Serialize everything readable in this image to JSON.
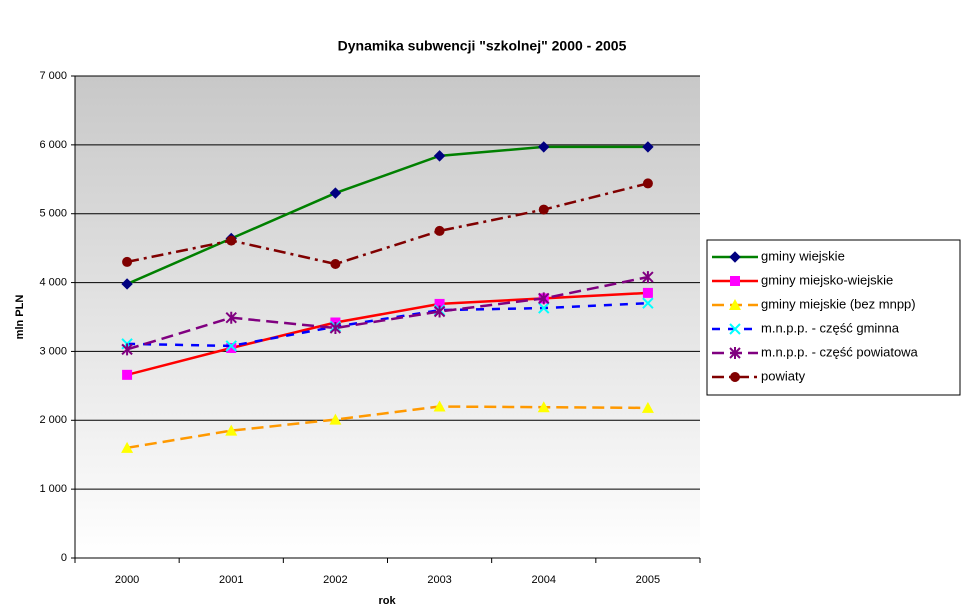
{
  "chart_data": {
    "type": "line",
    "title": "Dynamika subwencji \"szkolnej\" 2000 - 2005",
    "x_label": "rok",
    "y_label": "mln PLN",
    "categories": [
      "2000",
      "2001",
      "2002",
      "2003",
      "2004",
      "2005"
    ],
    "ylim": [
      0,
      7000
    ],
    "yticks": [
      0,
      {
        "value": 1000,
        "label": "1 000"
      },
      {
        "value": 2000,
        "label": "2 000"
      },
      {
        "value": 3000,
        "label": "3 000"
      },
      {
        "value": 4000,
        "label": "4 000"
      },
      {
        "value": 5000,
        "label": "5 000"
      },
      {
        "value": 6000,
        "label": "6 000"
      },
      {
        "value": 7000,
        "label": "7 000"
      }
    ],
    "grid": true,
    "legend": "right",
    "series": [
      {
        "name": "gminy wiejskie",
        "color": "#008000",
        "marker": "diamond",
        "marker_color": "#000080",
        "dash": "solid",
        "values": [
          3980,
          4640,
          5300,
          5840,
          5970,
          5970
        ]
      },
      {
        "name": "gminy miejsko-wiejskie",
        "color": "#ff0000",
        "marker": "square",
        "marker_color": "#ff00ff",
        "dash": "solid",
        "values": [
          2660,
          3050,
          3420,
          3690,
          3770,
          3850
        ]
      },
      {
        "name": "gminy miejskie (bez mnpp)",
        "color": "#ff9900",
        "marker": "triangle",
        "marker_color": "#ffff00",
        "dash": "dashed",
        "values": [
          1600,
          1850,
          2010,
          2200,
          2190,
          2180
        ]
      },
      {
        "name": "m.n.p.p. - część gminna",
        "color": "#0000ff",
        "marker": "x",
        "marker_color": "#00ffff",
        "dash": "dotted",
        "values": [
          3110,
          3080,
          3360,
          3600,
          3630,
          3700
        ]
      },
      {
        "name": "m.n.p.p. - część powiatowa",
        "color": "#800080",
        "marker": "asterisk",
        "marker_color": "#800080",
        "dash": "dashed",
        "values": [
          3030,
          3490,
          3340,
          3580,
          3770,
          4080
        ]
      },
      {
        "name": "powiaty",
        "color": "#800000",
        "marker": "circle",
        "marker_color": "#800000",
        "dash": "dashdot",
        "values": [
          4300,
          4610,
          4270,
          4750,
          5060,
          5440
        ]
      }
    ]
  }
}
